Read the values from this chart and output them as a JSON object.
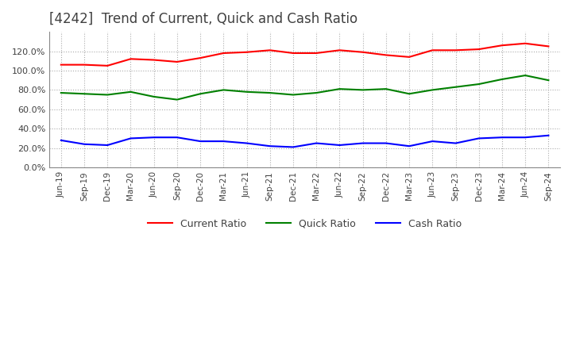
{
  "title": "[4242]  Trend of Current, Quick and Cash Ratio",
  "x_labels": [
    "Jun-19",
    "Sep-19",
    "Dec-19",
    "Mar-20",
    "Jun-20",
    "Sep-20",
    "Dec-20",
    "Mar-21",
    "Jun-21",
    "Sep-21",
    "Dec-21",
    "Mar-22",
    "Jun-22",
    "Sep-22",
    "Dec-22",
    "Mar-23",
    "Jun-23",
    "Sep-23",
    "Dec-23",
    "Mar-24",
    "Jun-24",
    "Sep-24"
  ],
  "current_ratio": [
    106,
    106,
    105,
    112,
    111,
    109,
    113,
    118,
    119,
    121,
    118,
    118,
    121,
    119,
    116,
    114,
    121,
    121,
    122,
    126,
    128,
    125
  ],
  "quick_ratio": [
    77,
    76,
    75,
    78,
    73,
    70,
    76,
    80,
    78,
    77,
    75,
    77,
    81,
    80,
    81,
    76,
    80,
    83,
    86,
    91,
    95,
    90
  ],
  "cash_ratio": [
    28,
    24,
    23,
    30,
    31,
    31,
    27,
    27,
    25,
    22,
    21,
    25,
    23,
    25,
    25,
    22,
    27,
    25,
    30,
    31,
    31,
    33
  ],
  "colors": {
    "current": "#FF0000",
    "quick": "#008000",
    "cash": "#0000FF"
  },
  "ylim": [
    0,
    140
  ],
  "yticks": [
    0,
    20,
    40,
    60,
    80,
    100,
    120
  ],
  "background_color": "#FFFFFF",
  "plot_bg_color": "#FFFFFF",
  "grid_color": "#AAAAAA",
  "title_color": "#404040",
  "legend_labels": [
    "Current Ratio",
    "Quick Ratio",
    "Cash Ratio"
  ]
}
